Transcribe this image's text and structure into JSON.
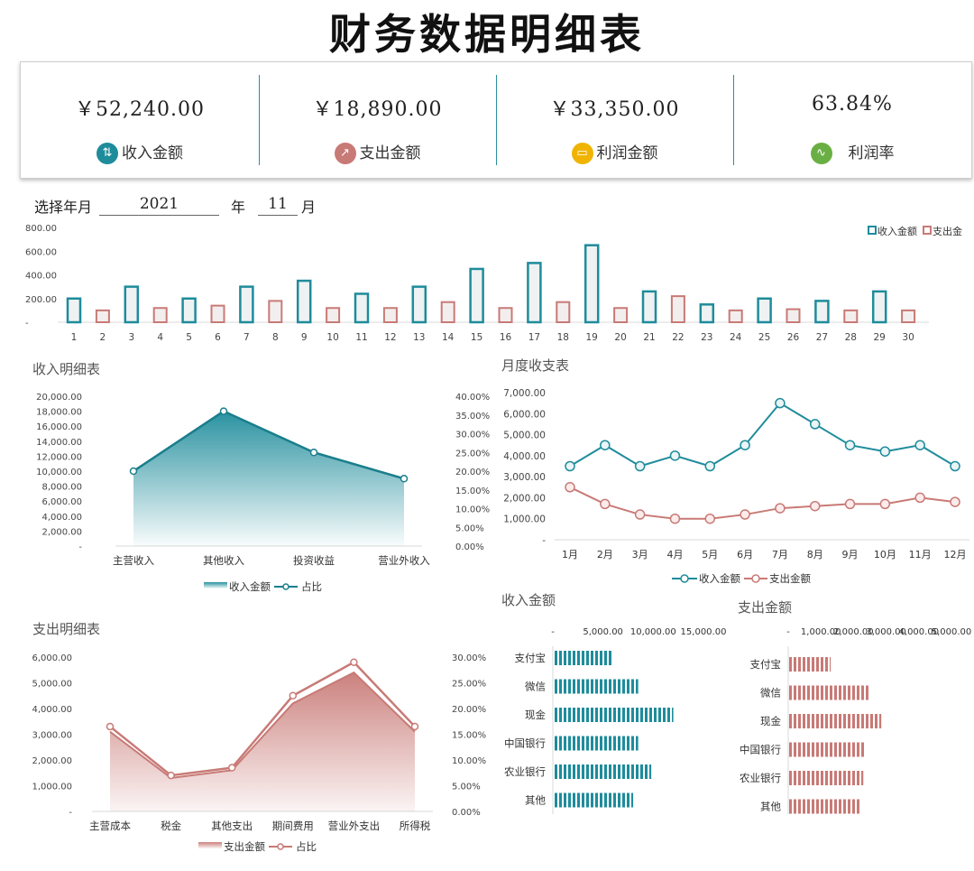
{
  "title": "财务数据明细表",
  "kpis": [
    {
      "value": "￥52,240.00",
      "label": "收入金额",
      "color": "#1e8c9b",
      "icon": "flow-icon"
    },
    {
      "value": "￥18,890.00",
      "label": "支出金额",
      "color": "#c87a76",
      "icon": "chart-up-icon"
    },
    {
      "value": "￥33,350.00",
      "label": "利润金额",
      "color": "#f0b400",
      "icon": "monitor-icon"
    },
    {
      "value": "63.84%",
      "label": "利润率",
      "color": "#6aaf44",
      "icon": "trend-icon"
    }
  ],
  "selector": {
    "label": "选择年月",
    "year": "2021",
    "year_unit": "年",
    "month": "11",
    "month_unit": "月"
  },
  "colors": {
    "teal": "#1e8c9b",
    "red": "#c87a76"
  },
  "chart_data": [
    {
      "id": "daily",
      "type": "bar",
      "title": "",
      "categories": [
        "1",
        "2",
        "3",
        "4",
        "5",
        "6",
        "7",
        "8",
        "9",
        "10",
        "11",
        "12",
        "13",
        "14",
        "15",
        "16",
        "17",
        "18",
        "19",
        "20",
        "21",
        "22",
        "23",
        "24",
        "25",
        "26",
        "27",
        "28",
        "29",
        "30"
      ],
      "series": [
        {
          "name": "收入金额",
          "values": [
            200,
            null,
            300,
            null,
            200,
            null,
            300,
            null,
            350,
            null,
            240,
            null,
            300,
            null,
            450,
            null,
            500,
            null,
            650,
            null,
            260,
            null,
            150,
            null,
            200,
            null,
            180,
            null,
            260,
            null
          ]
        },
        {
          "name": "支出金",
          "values": [
            null,
            100,
            null,
            120,
            null,
            140,
            null,
            180,
            null,
            120,
            null,
            120,
            null,
            170,
            null,
            120,
            null,
            170,
            null,
            120,
            null,
            220,
            null,
            100,
            null,
            110,
            null,
            100,
            null,
            100
          ]
        }
      ],
      "yticks": [
        "800.00",
        "600.00",
        "400.00",
        "200.00",
        "-"
      ],
      "ylim": [
        0,
        800
      ],
      "legend": "top-right"
    },
    {
      "id": "income",
      "type": "area",
      "title": "收入明细表",
      "categories": [
        "主营收入",
        "其他收入",
        "投资收益",
        "营业外收入"
      ],
      "series": [
        {
          "name": "收入金额",
          "values": [
            10000,
            18000,
            12500,
            9000
          ]
        },
        {
          "name": "占比",
          "values": [
            0.2,
            0.36,
            0.25,
            0.18
          ]
        }
      ],
      "yticks_left": [
        "20,000.00",
        "18,000.00",
        "16,000.00",
        "14,000.00",
        "12,000.00",
        "10,000.00",
        "8,000.00",
        "6,000.00",
        "4,000.00",
        "2,000.00",
        "-"
      ],
      "yticks_right": [
        "40.00%",
        "35.00%",
        "30.00%",
        "25.00%",
        "20.00%",
        "15.00%",
        "10.00%",
        "5.00%",
        "0.00%"
      ],
      "ylim_left": [
        0,
        20000
      ],
      "ylim_right": [
        0,
        0.4
      ],
      "legend": "bottom"
    },
    {
      "id": "monthly",
      "type": "line",
      "title": "月度收支表",
      "categories": [
        "1月",
        "2月",
        "3月",
        "4月",
        "5月",
        "6月",
        "7月",
        "8月",
        "9月",
        "10月",
        "11月",
        "12月"
      ],
      "series": [
        {
          "name": "收入金额",
          "values": [
            3500,
            4500,
            3500,
            4000,
            3500,
            4500,
            6500,
            5500,
            4500,
            4200,
            4500,
            3500
          ]
        },
        {
          "name": "支出金额",
          "values": [
            2500,
            1700,
            1200,
            1000,
            1000,
            1200,
            1500,
            1600,
            1700,
            1700,
            2000,
            1800
          ]
        }
      ],
      "yticks": [
        "7,000.00",
        "6,000.00",
        "5,000.00",
        "4,000.00",
        "3,000.00",
        "2,000.00",
        "1,000.00",
        "-"
      ],
      "ylim": [
        0,
        7000
      ],
      "legend": "bottom"
    },
    {
      "id": "expense",
      "type": "area",
      "title": "支出明细表",
      "categories": [
        "主营成本",
        "税金",
        "其他支出",
        "期间费用",
        "营业外支出",
        "所得税"
      ],
      "series": [
        {
          "name": "支出金额",
          "values": [
            3100,
            1300,
            1600,
            4200,
            5400,
            3100
          ]
        },
        {
          "name": "占比",
          "values": [
            0.165,
            0.07,
            0.085,
            0.225,
            0.29,
            0.165
          ]
        }
      ],
      "yticks_left": [
        "6,000.00",
        "5,000.00",
        "4,000.00",
        "3,000.00",
        "2,000.00",
        "1,000.00",
        "-"
      ],
      "yticks_right": [
        "30.00%",
        "25.00%",
        "20.00%",
        "15.00%",
        "10.00%",
        "5.00%",
        "0.00%"
      ],
      "ylim_left": [
        0,
        6000
      ],
      "ylim_right": [
        0,
        0.3
      ],
      "legend": "bottom"
    },
    {
      "id": "income_acct",
      "type": "bar",
      "title": "收入金额",
      "categories": [
        "支付宝",
        "微信",
        "现金",
        "中国银行",
        "农业银行",
        "其他"
      ],
      "values": [
        6000,
        8500,
        12000,
        8500,
        9800,
        8000
      ],
      "xticks": [
        "-",
        "5,000.00",
        "10,000.00",
        "15,000.00"
      ],
      "xlim": [
        0,
        15000
      ]
    },
    {
      "id": "expense_acct",
      "type": "bar",
      "title": "支出金额",
      "categories": [
        "支付宝",
        "微信",
        "现金",
        "中国银行",
        "农业银行",
        "其他"
      ],
      "values": [
        1300,
        2500,
        2850,
        2350,
        2300,
        2200
      ],
      "xticks": [
        "-",
        "1,000.00",
        "2,000.00",
        "3,000.00",
        "4,000.00",
        "5,000.00"
      ],
      "xlim": [
        0,
        5000
      ]
    }
  ]
}
